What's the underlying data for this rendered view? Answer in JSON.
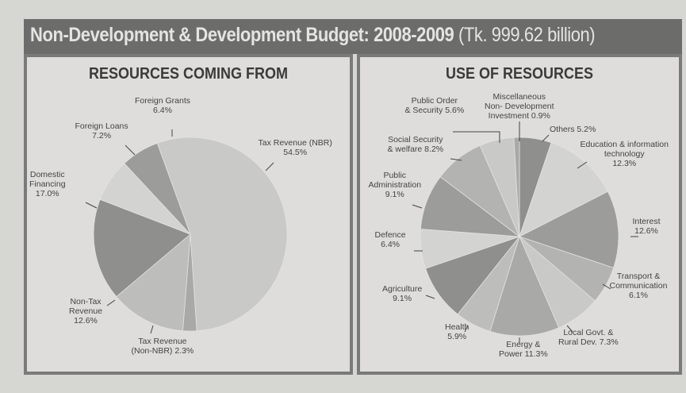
{
  "header": {
    "title": "Non-Development & Development Budget: 2008-2009",
    "subtitle": "(Tk. 999.62 billion)"
  },
  "colors": {
    "title_bar": "#6c6c6b",
    "slice_shades": [
      "#c9c9c7",
      "#a9a9a7",
      "#bdbdbb",
      "#8f8f8e",
      "#d3d3d1",
      "#9c9c9a",
      "#b3b3b1"
    ]
  },
  "chart_data": [
    {
      "type": "pie",
      "title": "RESOURCES COMING FROM",
      "unit": "%",
      "categories": [
        "Tax Revenue (NBR)",
        "Tax Revenue (Non-NBR)",
        "Non-Tax Revenue",
        "Domestic Financing",
        "Foreign Loans",
        "Foreign Grants"
      ],
      "values": [
        54.5,
        2.3,
        12.6,
        17.0,
        7.2,
        6.4
      ],
      "labels": [
        "Tax Revenue (NBR)\n54.5%",
        "Tax Revenue\n(Non-NBR) 2.3%",
        "Non-Tax\nRevenue\n12.6%",
        "Domestic\nFinancing\n17.0%",
        "Foreign Loans\n7.2%",
        "Foreign Grants\n6.4%"
      ]
    },
    {
      "type": "pie",
      "title": "USE OF RESOURCES",
      "unit": "%",
      "categories": [
        "Others",
        "Education & information technology",
        "Interest",
        "Transport & Communication",
        "Local Govt. & Rural Dev.",
        "Energy & Power",
        "Health",
        "Agriculture",
        "Defence",
        "Public Administration",
        "Social Security & welfare",
        "Public Order & Security",
        "Miscellaneous Non- Development Investment"
      ],
      "values": [
        5.2,
        12.3,
        12.6,
        6.1,
        7.3,
        11.3,
        5.9,
        9.1,
        6.4,
        9.1,
        8.2,
        5.6,
        0.9
      ],
      "labels": [
        "Others 5.2%",
        "Education & information\ntechnology\n12.3%",
        "Interest\n12.6%",
        "Transport &\nCommunication\n6.1%",
        "Local Govt. &\nRural Dev. 7.3%",
        "Energy &\nPower 11.3%",
        "Health\n5.9%",
        "Agriculture\n9.1%",
        "Defence\n6.4%",
        "Public\nAdministration\n9.1%",
        "Social Security\n& welfare 8.2%",
        "Public Order\n& Security 5.6%",
        "Miscellaneous\nNon- Development\nInvestment 0.9%"
      ]
    }
  ]
}
